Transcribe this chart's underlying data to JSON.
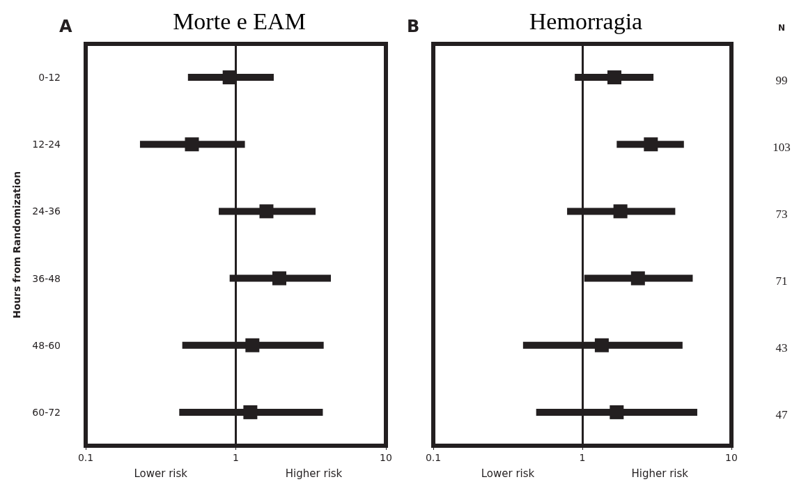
{
  "chart_data": [
    {
      "type": "scatter",
      "title": "Morte e EAM",
      "ylabel": "Hours from Randomization",
      "orientation": "horizontal",
      "categories": [
        "0-12",
        "12-24",
        "24-36",
        "36-48",
        "48-60",
        "60-72"
      ],
      "series": [
        {
          "color": "#231f20",
          "values": [
            0.91,
            0.51,
            1.6,
            1.95,
            1.29,
            1.25
          ],
          "errors": [
            [
              0.48,
              1.79
            ],
            [
              0.23,
              1.15
            ],
            [
              0.77,
              3.4
            ],
            [
              0.91,
              4.3
            ],
            [
              0.44,
              3.85
            ],
            [
              0.42,
              3.8
            ]
          ]
        }
      ],
      "log": "x",
      "xlim": [
        0.1,
        10
      ],
      "xticks": [
        0.1,
        1,
        10
      ],
      "marker": "square",
      "ref_lines": [
        {
          "axis": "x",
          "value": 1,
          "color": "#231f20"
        }
      ],
      "annotations": [
        "A",
        "Lower risk",
        "Higher risk"
      ]
    },
    {
      "type": "scatter",
      "title": "Hemorragia",
      "orientation": "horizontal",
      "tick_labels": "x",
      "categories": [
        null,
        null,
        null,
        null,
        null,
        null
      ],
      "series": [
        {
          "color": "#231f20",
          "values": [
            1.64,
            2.88,
            1.8,
            2.36,
            1.35,
            1.7
          ],
          "errors": [
            [
              0.89,
              3.0
            ],
            [
              1.7,
              4.8
            ],
            [
              0.79,
              4.2
            ],
            [
              1.03,
              5.5
            ],
            [
              0.4,
              4.7
            ],
            [
              0.49,
              5.9
            ]
          ]
        }
      ],
      "log": "x",
      "xlim": [
        0.1,
        10
      ],
      "xticks": [
        0.1,
        1,
        10
      ],
      "marker": "square",
      "ref_lines": [
        {
          "axis": "x",
          "value": 1,
          "color": "#231f20"
        }
      ],
      "annotations": [
        "B",
        "Lower risk",
        "Higher risk",
        "N",
        "99",
        "103",
        "73",
        "71",
        "43",
        "47"
      ]
    }
  ]
}
